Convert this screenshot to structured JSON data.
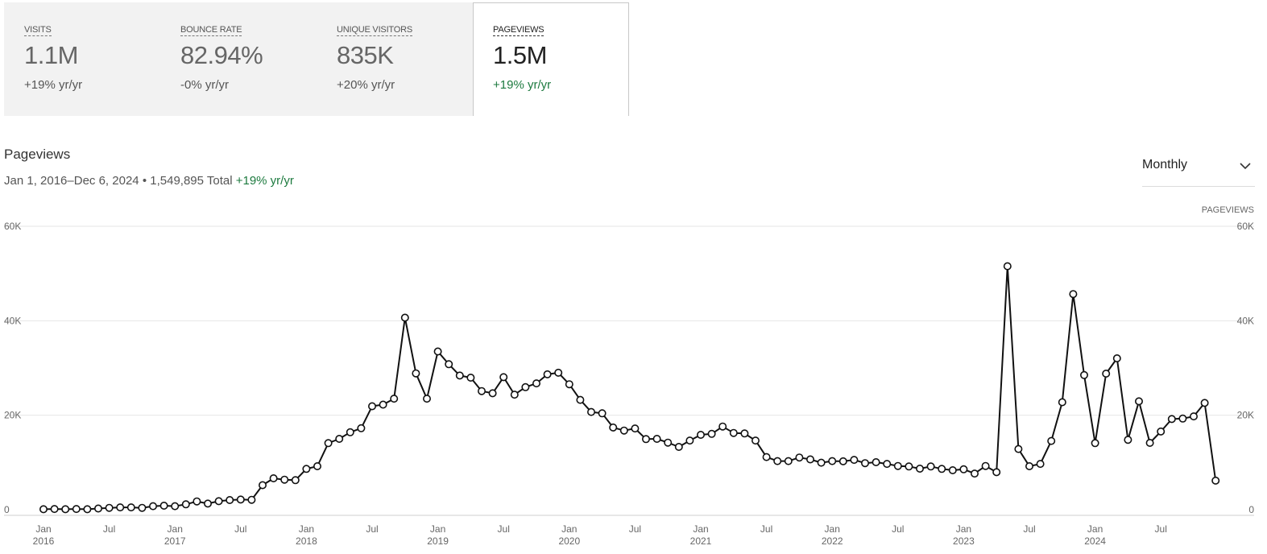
{
  "tabs": [
    {
      "label": "VISITS",
      "value": "1.1M",
      "change": "+19% yr/yr",
      "active": false
    },
    {
      "label": "BOUNCE RATE",
      "value": "82.94%",
      "change": "-0% yr/yr",
      "active": false
    },
    {
      "label": "UNIQUE VISITORS",
      "value": "835K",
      "change": "+20% yr/yr",
      "active": false
    },
    {
      "label": "PAGEVIEWS",
      "value": "1.5M",
      "change": "+19% yr/yr",
      "active": true
    }
  ],
  "section": {
    "title": "Pageviews",
    "date_range": "Jan 1, 2016–Dec 6, 2024",
    "separator": "•",
    "total": "1,549,895 Total",
    "change": "+19% yr/yr"
  },
  "period_select": {
    "selected": "Monthly",
    "icon": "chevron-down-icon"
  },
  "colors": {
    "positive": "#1d7a3f",
    "line": "#111111",
    "grid": "#e6e6e6"
  },
  "chart_data": {
    "type": "line",
    "title": "",
    "ylabel": "PAGEVIEWS",
    "ylim": [
      0,
      60000
    ],
    "yticks": [
      0,
      20000,
      40000,
      60000
    ],
    "ytick_labels": [
      "0",
      "20K",
      "40K",
      "60K"
    ],
    "grid": true,
    "dual_y_axis": true,
    "markers": "hollow-circle",
    "xtick_labels": [
      {
        "month": "Jan",
        "year": "2016",
        "index": 0
      },
      {
        "month": "Jul",
        "year": "",
        "index": 6
      },
      {
        "month": "Jan",
        "year": "2017",
        "index": 12
      },
      {
        "month": "Jul",
        "year": "",
        "index": 18
      },
      {
        "month": "Jan",
        "year": "2018",
        "index": 24
      },
      {
        "month": "Jul",
        "year": "",
        "index": 30
      },
      {
        "month": "Jan",
        "year": "2019",
        "index": 36
      },
      {
        "month": "Jul",
        "year": "",
        "index": 42
      },
      {
        "month": "Jan",
        "year": "2020",
        "index": 48
      },
      {
        "month": "Jul",
        "year": "",
        "index": 54
      },
      {
        "month": "Jan",
        "year": "2021",
        "index": 60
      },
      {
        "month": "Jul",
        "year": "",
        "index": 66
      },
      {
        "month": "Jan",
        "year": "2022",
        "index": 72
      },
      {
        "month": "Jul",
        "year": "",
        "index": 78
      },
      {
        "month": "Jan",
        "year": "2023",
        "index": 84
      },
      {
        "month": "Jul",
        "year": "",
        "index": 90
      },
      {
        "month": "Jan",
        "year": "2024",
        "index": 96
      },
      {
        "month": "Jul",
        "year": "",
        "index": 102
      }
    ],
    "series": [
      {
        "name": "Pageviews",
        "start": "2016-01",
        "values": [
          100,
          150,
          100,
          150,
          100,
          250,
          400,
          500,
          500,
          400,
          750,
          850,
          750,
          1150,
          1750,
          1300,
          1800,
          2050,
          2150,
          2100,
          5200,
          6650,
          6350,
          6250,
          8650,
          9200,
          14100,
          15000,
          16400,
          17250,
          21900,
          22250,
          23500,
          40650,
          28850,
          23500,
          33500,
          30800,
          28400,
          27950,
          25100,
          24650,
          28050,
          24350,
          25950,
          26750,
          28650,
          29000,
          26550,
          23250,
          20700,
          20400,
          17400,
          16750,
          17200,
          14950,
          15000,
          14200,
          13300,
          14650,
          15850,
          16050,
          17600,
          16250,
          16150,
          14650,
          11150,
          10300,
          10300,
          11050,
          10650,
          9950,
          10300,
          10250,
          10550,
          9850,
          10050,
          9700,
          9250,
          9150,
          8700,
          9150,
          8650,
          8350,
          8550,
          7650,
          9250,
          7950,
          51550,
          12850,
          9200,
          9700,
          14550,
          22750,
          45650,
          28500,
          14100,
          28800,
          32050,
          14800,
          22950,
          14150,
          16550,
          19200,
          19300,
          19750,
          22600,
          6150
        ]
      }
    ]
  }
}
